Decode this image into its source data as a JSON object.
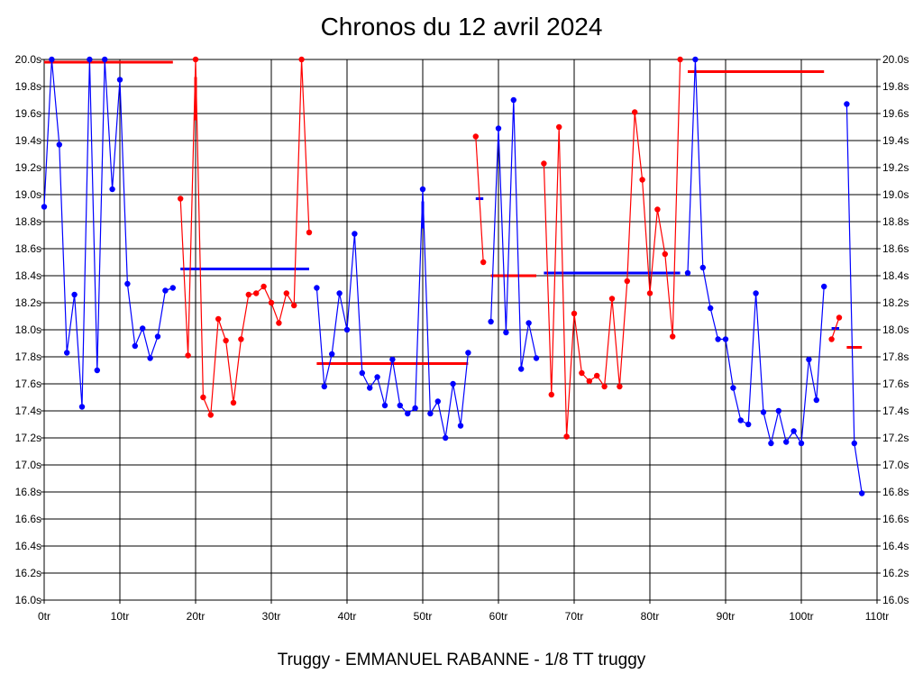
{
  "chart_data": {
    "type": "line",
    "title": "Chronos du 12 avril 2024",
    "footer": "Truggy - EMMANUEL RABANNE - 1/8 TT truggy",
    "xlim": [
      0,
      110
    ],
    "ylim": [
      16.0,
      20.0
    ],
    "x_ticks": [
      {
        "v": 0,
        "label": "0tr"
      },
      {
        "v": 10,
        "label": "10tr"
      },
      {
        "v": 20,
        "label": "20tr"
      },
      {
        "v": 30,
        "label": "30tr"
      },
      {
        "v": 40,
        "label": "40tr"
      },
      {
        "v": 50,
        "label": "50tr"
      },
      {
        "v": 60,
        "label": "60tr"
      },
      {
        "v": 70,
        "label": "70tr"
      },
      {
        "v": 80,
        "label": "80tr"
      },
      {
        "v": 90,
        "label": "90tr"
      },
      {
        "v": 100,
        "label": "100tr"
      },
      {
        "v": 110,
        "label": "110tr"
      }
    ],
    "y_ticks": [
      {
        "v": 16.0,
        "label": "16.0s"
      },
      {
        "v": 16.2,
        "label": "16.2s"
      },
      {
        "v": 16.4,
        "label": "16.4s"
      },
      {
        "v": 16.6,
        "label": "16.6s"
      },
      {
        "v": 16.8,
        "label": "16.8s"
      },
      {
        "v": 17.0,
        "label": "17.0s"
      },
      {
        "v": 17.2,
        "label": "17.2s"
      },
      {
        "v": 17.4,
        "label": "17.4s"
      },
      {
        "v": 17.6,
        "label": "17.6s"
      },
      {
        "v": 17.8,
        "label": "17.8s"
      },
      {
        "v": 18.0,
        "label": "18.0s"
      },
      {
        "v": 18.2,
        "label": "18.2s"
      },
      {
        "v": 18.4,
        "label": "18.4s"
      },
      {
        "v": 18.6,
        "label": "18.6s"
      },
      {
        "v": 18.8,
        "label": "18.8s"
      },
      {
        "v": 19.0,
        "label": "19.0s"
      },
      {
        "v": 19.2,
        "label": "19.2s"
      },
      {
        "v": 19.4,
        "label": "19.4s"
      },
      {
        "v": 19.6,
        "label": "19.6s"
      },
      {
        "v": 19.8,
        "label": "19.8s"
      },
      {
        "v": 20.0,
        "label": "20.0s"
      }
    ],
    "grid": true,
    "colors": {
      "blue": "#0000ff",
      "red": "#ff0000",
      "grid": "#000000"
    },
    "series": [
      {
        "color": "blue",
        "points": [
          [
            0,
            18.91
          ],
          [
            1,
            20.0
          ],
          [
            2,
            19.37
          ],
          [
            3,
            17.83
          ],
          [
            4,
            18.26
          ],
          [
            5,
            17.43
          ],
          [
            6,
            20.0
          ],
          [
            7,
            17.7
          ],
          [
            8,
            20.0
          ],
          [
            9,
            19.04
          ],
          [
            10,
            19.85
          ],
          [
            11,
            18.34
          ],
          [
            12,
            17.88
          ],
          [
            13,
            18.01
          ],
          [
            14,
            17.79
          ],
          [
            15,
            17.95
          ],
          [
            16,
            18.29
          ],
          [
            17,
            18.31
          ]
        ]
      },
      {
        "color": "red",
        "points": [
          [
            18,
            18.97
          ],
          [
            19,
            17.81
          ],
          [
            20,
            20.0
          ],
          [
            21,
            17.5
          ],
          [
            22,
            17.37
          ],
          [
            23,
            18.08
          ],
          [
            24,
            17.92
          ],
          [
            25,
            17.46
          ],
          [
            26,
            17.93
          ],
          [
            27,
            18.26
          ],
          [
            28,
            18.27
          ],
          [
            29,
            18.32
          ],
          [
            30,
            18.2
          ],
          [
            31,
            18.05
          ],
          [
            32,
            18.27
          ],
          [
            33,
            18.18
          ],
          [
            34,
            20.0
          ],
          [
            35,
            18.72
          ]
        ]
      },
      {
        "color": "blue",
        "points": [
          [
            36,
            18.31
          ],
          [
            37,
            17.58
          ],
          [
            38,
            17.82
          ],
          [
            39,
            18.27
          ],
          [
            40,
            18.0
          ],
          [
            41,
            18.71
          ],
          [
            42,
            17.68
          ],
          [
            43,
            17.57
          ],
          [
            44,
            17.65
          ],
          [
            45,
            17.44
          ],
          [
            46,
            17.78
          ],
          [
            47,
            17.44
          ],
          [
            48,
            17.38
          ],
          [
            49,
            17.42
          ],
          [
            50,
            19.04
          ],
          [
            51,
            17.38
          ],
          [
            52,
            17.47
          ],
          [
            53,
            17.2
          ],
          [
            54,
            17.6
          ],
          [
            55,
            17.29
          ],
          [
            56,
            17.83
          ]
        ]
      },
      {
        "color": "red",
        "points": [
          [
            57,
            19.43
          ],
          [
            58,
            18.5
          ]
        ]
      },
      {
        "color": "blue",
        "points": [
          [
            59,
            18.06
          ],
          [
            60,
            19.49
          ],
          [
            61,
            17.98
          ],
          [
            62,
            19.7
          ],
          [
            63,
            17.71
          ],
          [
            64,
            18.05
          ],
          [
            65,
            17.79
          ]
        ]
      },
      {
        "color": "red",
        "points": [
          [
            66,
            19.23
          ],
          [
            67,
            17.52
          ],
          [
            68,
            19.5
          ],
          [
            69,
            17.21
          ],
          [
            70,
            18.12
          ],
          [
            71,
            17.68
          ],
          [
            72,
            17.62
          ],
          [
            73,
            17.66
          ],
          [
            74,
            17.58
          ],
          [
            75,
            18.23
          ],
          [
            76,
            17.58
          ],
          [
            77,
            18.36
          ],
          [
            78,
            19.61
          ],
          [
            79,
            19.11
          ],
          [
            80,
            18.27
          ],
          [
            81,
            18.89
          ],
          [
            82,
            18.56
          ],
          [
            83,
            17.95
          ],
          [
            84,
            20.0
          ]
        ]
      },
      {
        "color": "blue",
        "points": [
          [
            85,
            18.42
          ],
          [
            86,
            20.0
          ],
          [
            87,
            18.46
          ],
          [
            88,
            18.16
          ],
          [
            89,
            17.93
          ],
          [
            90,
            17.93
          ],
          [
            91,
            17.57
          ],
          [
            92,
            17.33
          ],
          [
            93,
            17.3
          ],
          [
            94,
            18.27
          ],
          [
            95,
            17.39
          ],
          [
            96,
            17.16
          ],
          [
            97,
            17.4
          ],
          [
            98,
            17.17
          ],
          [
            99,
            17.25
          ],
          [
            100,
            17.16
          ],
          [
            101,
            17.78
          ],
          [
            102,
            17.48
          ],
          [
            103,
            18.32
          ]
        ]
      },
      {
        "color": "red",
        "points": [
          [
            104,
            17.93
          ],
          [
            105,
            18.09
          ]
        ]
      },
      {
        "color": "blue",
        "points": [
          [
            106,
            19.67
          ],
          [
            107,
            17.16
          ],
          [
            108,
            16.79
          ]
        ]
      }
    ],
    "mean_lines": [
      {
        "color": "red",
        "x": [
          0,
          17
        ],
        "y": 19.98
      },
      {
        "color": "blue",
        "x": [
          18,
          35
        ],
        "y": 18.45
      },
      {
        "color": "red",
        "x": [
          36,
          56
        ],
        "y": 17.75
      },
      {
        "color": "blue",
        "x": [
          57,
          58
        ],
        "y": 18.97
      },
      {
        "color": "red",
        "x": [
          59,
          65
        ],
        "y": 18.4
      },
      {
        "color": "blue",
        "x": [
          66,
          84
        ],
        "y": 18.42
      },
      {
        "color": "red",
        "x": [
          85,
          103
        ],
        "y": 19.91
      },
      {
        "color": "blue",
        "x": [
          104,
          105
        ],
        "y": 18.01
      },
      {
        "color": "red",
        "x": [
          106,
          108
        ],
        "y": 17.87
      }
    ],
    "vertical_marks": [
      {
        "color": "red",
        "x": 20,
        "y": [
          19.55,
          19.87
        ]
      },
      {
        "color": "blue",
        "x": 50,
        "y": [
          18.75,
          18.95
        ]
      }
    ]
  }
}
